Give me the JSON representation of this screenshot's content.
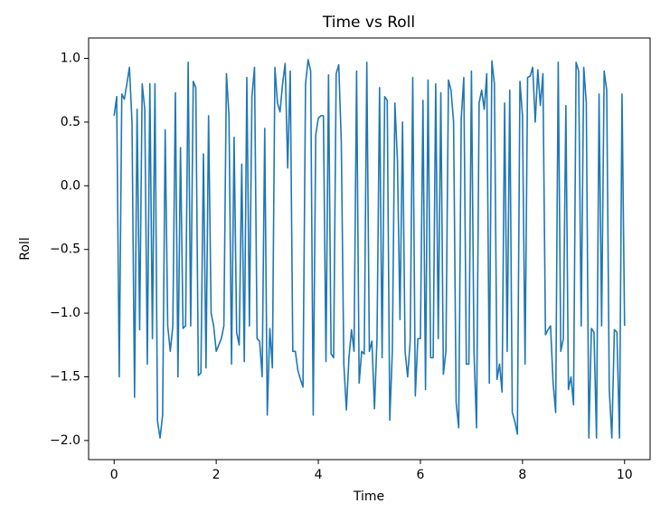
{
  "chart_data": {
    "type": "line",
    "title": "Time vs Roll",
    "x_label": "Time",
    "y_label": "Roll",
    "x": [
      0,
      0.05,
      0.1,
      0.15,
      0.2,
      0.25,
      0.3,
      0.35,
      0.4,
      0.45,
      0.5,
      0.55,
      0.6,
      0.65,
      0.7,
      0.75,
      0.8,
      0.85,
      0.9,
      0.95,
      1,
      1.05,
      1.1,
      1.15,
      1.2,
      1.25,
      1.3,
      1.35,
      1.4,
      1.45,
      1.5,
      1.55,
      1.6,
      1.65,
      1.7,
      1.75,
      1.8,
      1.85,
      1.9,
      1.95,
      2,
      2.05,
      2.1,
      2.15,
      2.2,
      2.25,
      2.3,
      2.35,
      2.4,
      2.45,
      2.5,
      2.55,
      2.6,
      2.65,
      2.7,
      2.75,
      2.8,
      2.85,
      2.9,
      2.95,
      3,
      3.05,
      3.1,
      3.15,
      3.2,
      3.25,
      3.3,
      3.35,
      3.4,
      3.45,
      3.5,
      3.55,
      3.6,
      3.65,
      3.7,
      3.75,
      3.8,
      3.85,
      3.9,
      3.95,
      4,
      4.05,
      4.1,
      4.15,
      4.2,
      4.25,
      4.3,
      4.35,
      4.4,
      4.45,
      4.5,
      4.55,
      4.6,
      4.65,
      4.7,
      4.75,
      4.8,
      4.85,
      4.9,
      4.95,
      5,
      5.05,
      5.1,
      5.15,
      5.2,
      5.25,
      5.3,
      5.35,
      5.4,
      5.45,
      5.5,
      5.55,
      5.6,
      5.65,
      5.7,
      5.75,
      5.8,
      5.85,
      5.9,
      5.95,
      6,
      6.05,
      6.1,
      6.15,
      6.2,
      6.25,
      6.3,
      6.35,
      6.4,
      6.45,
      6.5,
      6.55,
      6.6,
      6.65,
      6.7,
      6.75,
      6.8,
      6.85,
      6.9,
      6.95,
      7,
      7.05,
      7.1,
      7.15,
      7.2,
      7.25,
      7.3,
      7.35,
      7.4,
      7.45,
      7.5,
      7.55,
      7.6,
      7.65,
      7.7,
      7.75,
      7.8,
      7.85,
      7.9,
      7.95,
      8,
      8.05,
      8.1,
      8.15,
      8.2,
      8.25,
      8.3,
      8.35,
      8.4,
      8.45,
      8.5,
      8.55,
      8.6,
      8.65,
      8.7,
      8.75,
      8.8,
      8.85,
      8.9,
      8.95,
      9,
      9.05,
      9.1,
      9.15,
      9.2,
      9.25,
      9.3,
      9.35,
      9.4,
      9.45,
      9.5,
      9.55,
      9.6,
      9.65,
      9.7,
      9.75,
      9.8,
      9.85,
      9.9,
      9.95,
      10
    ],
    "series": [
      {
        "name": "Roll",
        "color": "#1f77b4",
        "values": [
          0.55,
          0.7,
          -1.5,
          0.72,
          0.68,
          0.8,
          0.93,
          0.5,
          -1.66,
          0.6,
          -1.13,
          0.8,
          0.6,
          -1.4,
          0.8,
          -1.2,
          0.8,
          -1.85,
          -1.98,
          -1.8,
          0.44,
          -1.1,
          -1.3,
          -1.1,
          0.73,
          -1.5,
          0.3,
          -1.12,
          -1.1,
          0.97,
          -1.1,
          0.82,
          0.77,
          -1.49,
          -1.47,
          0.25,
          -1.43,
          0.55,
          -1.0,
          -1.1,
          -1.3,
          -1.25,
          -1.2,
          -1.1,
          0.88,
          0.55,
          -1.4,
          0.38,
          -1.15,
          -1.25,
          0.17,
          -1.38,
          0.85,
          -1.1,
          0.7,
          0.93,
          -1.2,
          -1.22,
          -1.5,
          0.45,
          -1.8,
          -1.12,
          -1.43,
          0.93,
          0.65,
          0.58,
          0.8,
          0.96,
          0.14,
          0.9,
          -1.3,
          -1.3,
          -1.45,
          -1.52,
          -1.58,
          0.8,
          0.99,
          0.9,
          -1.8,
          0.4,
          0.53,
          0.55,
          0.55,
          -1.38,
          0.87,
          -1.32,
          -1.35,
          0.88,
          0.95,
          0.35,
          -1.4,
          -1.76,
          -1.35,
          -1.13,
          -1.3,
          0.9,
          -1.55,
          -1.3,
          -1.32,
          0.97,
          -1.3,
          -1.22,
          -1.75,
          -1.2,
          0.77,
          -1.35,
          0.7,
          0.67,
          -1.84,
          -1.3,
          0.65,
          0.2,
          -1.05,
          0.5,
          -1.3,
          -1.5,
          -1.22,
          0.85,
          -1.65,
          -1.2,
          -1.2,
          0.67,
          -1.6,
          0.83,
          -1.35,
          -1.35,
          0.8,
          -1.2,
          0.73,
          -1.48,
          -1.3,
          0.83,
          0.75,
          0.5,
          -1.7,
          -1.9,
          0.53,
          0.85,
          -1.4,
          -1.4,
          0.9,
          -1.3,
          -1.9,
          0.65,
          0.75,
          0.6,
          0.88,
          -1.55,
          0.98,
          0.8,
          -1.52,
          -1.4,
          -1.62,
          0.65,
          -1.3,
          0.75,
          -1.78,
          -1.85,
          -1.95,
          0.82,
          0.55,
          -1.4,
          0.85,
          0.86,
          0.93,
          0.5,
          0.91,
          0.63,
          0.88,
          -1.17,
          -1.13,
          -1.1,
          -1.55,
          -1.78,
          0.97,
          -1.3,
          -1.2,
          0.63,
          -1.6,
          -1.5,
          -1.72,
          0.97,
          0.9,
          -1.1,
          0.93,
          0.65,
          -1.98,
          -1.12,
          -1.15,
          -1.98,
          0.72,
          -1.1,
          0.9,
          0.75,
          -1.6,
          -1.98,
          -1.13,
          -1.15,
          -1.98,
          0.72,
          -1.1
        ]
      }
    ],
    "xlim": [
      -0.5,
      10.5
    ],
    "ylim": [
      -2.15,
      1.16
    ],
    "xticks": [
      0,
      2,
      4,
      6,
      8,
      10
    ],
    "yticks": [
      {
        "value": -2.0,
        "label": "−2.0"
      },
      {
        "value": -1.5,
        "label": "−1.5"
      },
      {
        "value": -1.0,
        "label": "−1.0"
      },
      {
        "value": -0.5,
        "label": "−0.5"
      },
      {
        "value": 0.0,
        "label": "0.0"
      },
      {
        "value": 0.5,
        "label": "0.5"
      },
      {
        "value": 1.0,
        "label": "1.0"
      }
    ]
  }
}
